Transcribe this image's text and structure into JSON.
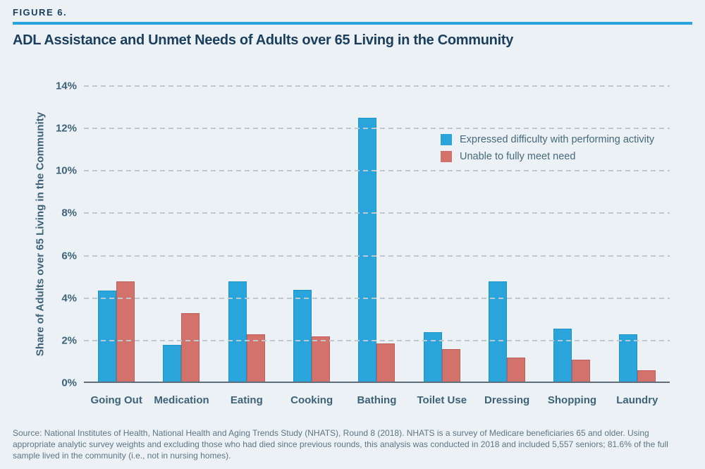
{
  "figure_label": "FIGURE 6.",
  "title": "ADL Assistance and Unmet Needs of Adults over 65 Living in the Community",
  "source_note": "Source: National Institutes of Health, National Health and Aging Trends Study (NHATS), Round 8 (2018). NHATS is a survey of Medicare beneficiaries 65 and older. Using appropriate analytic survey weights and excluding those who had died since previous rounds, this analysis was conducted in 2018 and included 5,557 seniors; 81.6% of the full sample lived in the community (i.e., not in nursing homes).",
  "colors": {
    "background": "#EBF1F4",
    "accent_rule": "#2BA4DE",
    "title_text": "#1A3E5C",
    "axis_text": "#3E6277",
    "gridline": "#BDC8D0",
    "axis_line": "#5E6E7A",
    "series_difficulty": "#29A5DC",
    "series_unmet": "#D3716B",
    "source_text": "#5E7584"
  },
  "chart_data": {
    "type": "bar",
    "title": "ADL Assistance and Unmet Needs of Adults over 65 Living in the Community",
    "categories": [
      "Going Out",
      "Medication",
      "Eating",
      "Cooking",
      "Bathing",
      "Toilet Use",
      "Dressing",
      "Shopping",
      "Laundry"
    ],
    "series": [
      {
        "name": "Expressed difficulty with performing activity",
        "color": "#29A5DC",
        "values": [
          4.35,
          1.8,
          4.8,
          4.4,
          12.5,
          2.4,
          4.8,
          2.55,
          2.3
        ]
      },
      {
        "name": "Unable to fully meet need",
        "color": "#D3716B",
        "values": [
          4.8,
          3.3,
          2.3,
          2.2,
          1.85,
          1.6,
          1.2,
          1.1,
          0.6
        ]
      }
    ],
    "xlabel": "",
    "ylabel": "Share of Adults over 65 Living in the Community",
    "ylim": [
      0,
      14
    ],
    "ytick_labels": [
      "0%",
      "2%",
      "4%",
      "6%",
      "8%",
      "10%",
      "12%",
      "14%"
    ],
    "ytick_values": [
      0,
      2,
      4,
      6,
      8,
      10,
      12,
      14
    ],
    "unit": "%",
    "grid": "horizontal-dashed",
    "legend_position": "upper-right-inside"
  }
}
